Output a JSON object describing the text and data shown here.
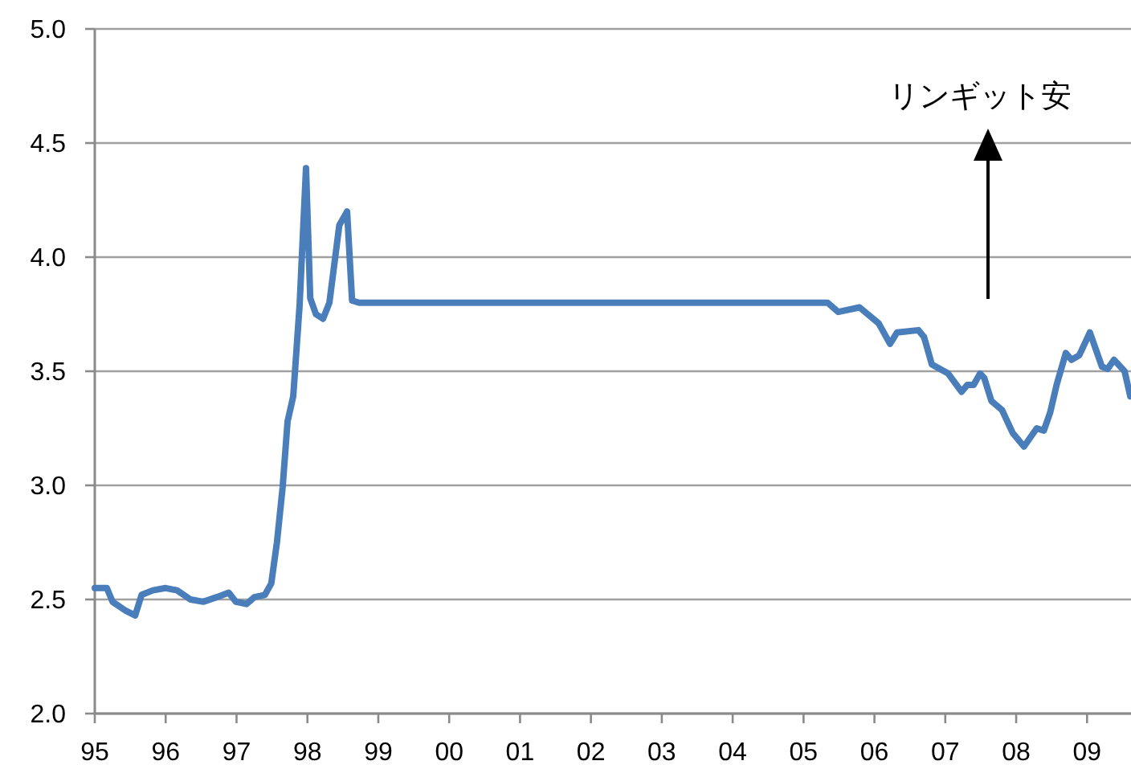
{
  "chart_data": {
    "type": "line",
    "x": [
      1995.0,
      1995.17,
      1995.25,
      1995.44,
      1995.57,
      1995.66,
      1995.82,
      1996.0,
      1996.16,
      1996.35,
      1996.53,
      1996.72,
      1996.89,
      1996.99,
      1997.14,
      1997.25,
      1997.4,
      1997.49,
      1997.57,
      1997.65,
      1997.72,
      1997.8,
      1997.89,
      1997.98,
      1998.04,
      1998.12,
      1998.22,
      1998.31,
      1998.45,
      1998.56,
      1998.63,
      1998.73,
      2005.34,
      2005.49,
      2005.79,
      2006.06,
      2006.22,
      2006.32,
      2006.62,
      2006.7,
      2006.81,
      2007.04,
      2007.23,
      2007.31,
      2007.4,
      2007.49,
      2007.55,
      2007.65,
      2007.8,
      2007.95,
      2008.11,
      2008.29,
      2008.39,
      2008.48,
      2008.57,
      2008.7,
      2008.78,
      2008.89,
      2009.04,
      2009.21,
      2009.29,
      2009.38,
      2009.53,
      2009.61
    ],
    "series": [
      {
        "color": "#4a7ebb",
        "values": [
          2.55,
          2.55,
          2.49,
          2.45,
          2.43,
          2.52,
          2.54,
          2.55,
          2.54,
          2.5,
          2.49,
          2.51,
          2.53,
          2.49,
          2.48,
          2.51,
          2.52,
          2.57,
          2.75,
          2.99,
          3.28,
          3.39,
          3.79,
          4.39,
          3.82,
          3.75,
          3.73,
          3.8,
          4.14,
          4.2,
          3.81,
          3.8,
          3.8,
          3.76,
          3.78,
          3.71,
          3.62,
          3.67,
          3.68,
          3.65,
          3.53,
          3.49,
          3.41,
          3.44,
          3.44,
          3.49,
          3.47,
          3.37,
          3.33,
          3.23,
          3.17,
          3.25,
          3.24,
          3.32,
          3.44,
          3.58,
          3.55,
          3.57,
          3.67,
          3.52,
          3.51,
          3.55,
          3.5,
          3.39
        ]
      }
    ],
    "xlim": [
      1995,
      2009.62
    ],
    "xticks": [
      {
        "value": 1995,
        "label": "95"
      },
      {
        "value": 1996,
        "label": "96"
      },
      {
        "value": 1997,
        "label": "97"
      },
      {
        "value": 1998,
        "label": "98"
      },
      {
        "value": 1999,
        "label": "99"
      },
      {
        "value": 2000,
        "label": "00"
      },
      {
        "value": 2001,
        "label": "01"
      },
      {
        "value": 2002,
        "label": "02"
      },
      {
        "value": 2003,
        "label": "03"
      },
      {
        "value": 2004,
        "label": "04"
      },
      {
        "value": 2005,
        "label": "05"
      },
      {
        "value": 2006,
        "label": "06"
      },
      {
        "value": 2007,
        "label": "07"
      },
      {
        "value": 2008,
        "label": "08"
      },
      {
        "value": 2009,
        "label": "09"
      }
    ],
    "ylim": [
      2.0,
      5.0
    ],
    "yticks": [
      {
        "value": 2.0,
        "label": "2.0"
      },
      {
        "value": 2.5,
        "label": "2.5"
      },
      {
        "value": 3.0,
        "label": "3.0"
      },
      {
        "value": 3.5,
        "label": "3.5"
      },
      {
        "value": 4.0,
        "label": "4.0"
      },
      {
        "value": 4.5,
        "label": "4.5"
      },
      {
        "value": 5.0,
        "label": "5.0"
      }
    ],
    "grid": "y",
    "annotations": [
      "リンギット安"
    ]
  }
}
